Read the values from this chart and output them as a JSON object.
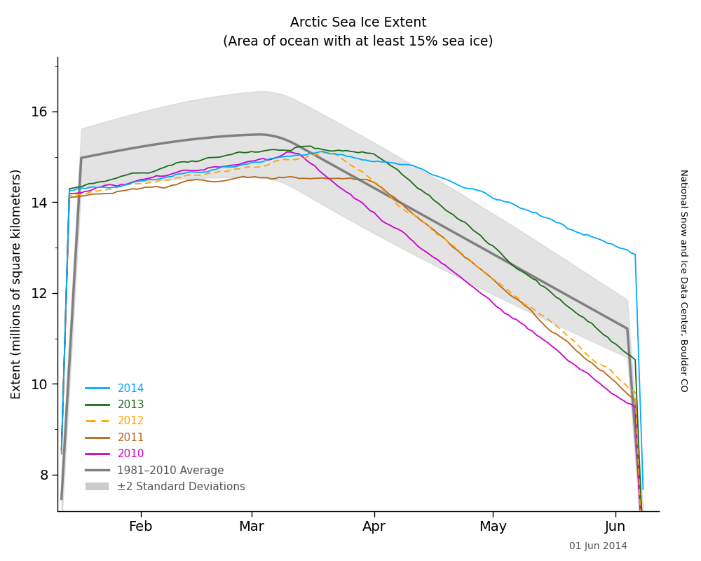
{
  "title_line1": "Arctic Sea Ice Extent",
  "title_line2": "(Area of ocean with at least 15% sea ice)",
  "ylabel": "Extent (millions of square kilometers)",
  "watermark": "National Snow and Ice Data Center, Boulder CO",
  "date_label": "01 Jun 2014",
  "ylim": [
    7.2,
    17.2
  ],
  "yticks": [
    8,
    10,
    12,
    14,
    16
  ],
  "month_labels": [
    "Feb",
    "Mar",
    "Apr",
    "May",
    "Jun"
  ],
  "month_positions": [
    31,
    59,
    90,
    120,
    151
  ],
  "xlim": [
    10,
    162
  ],
  "colors": {
    "2014": "#00AAFF",
    "2013": "#1B6B1B",
    "2012": "#FFA500",
    "2011": "#B8651A",
    "2010": "#CC00CC",
    "average": "#808080",
    "shading": "#CCCCCC"
  },
  "legend_items": [
    "2014",
    "2013",
    "2012",
    "2011",
    "2010",
    "1981–2010 Average",
    "±2 Standard Deviations"
  ]
}
